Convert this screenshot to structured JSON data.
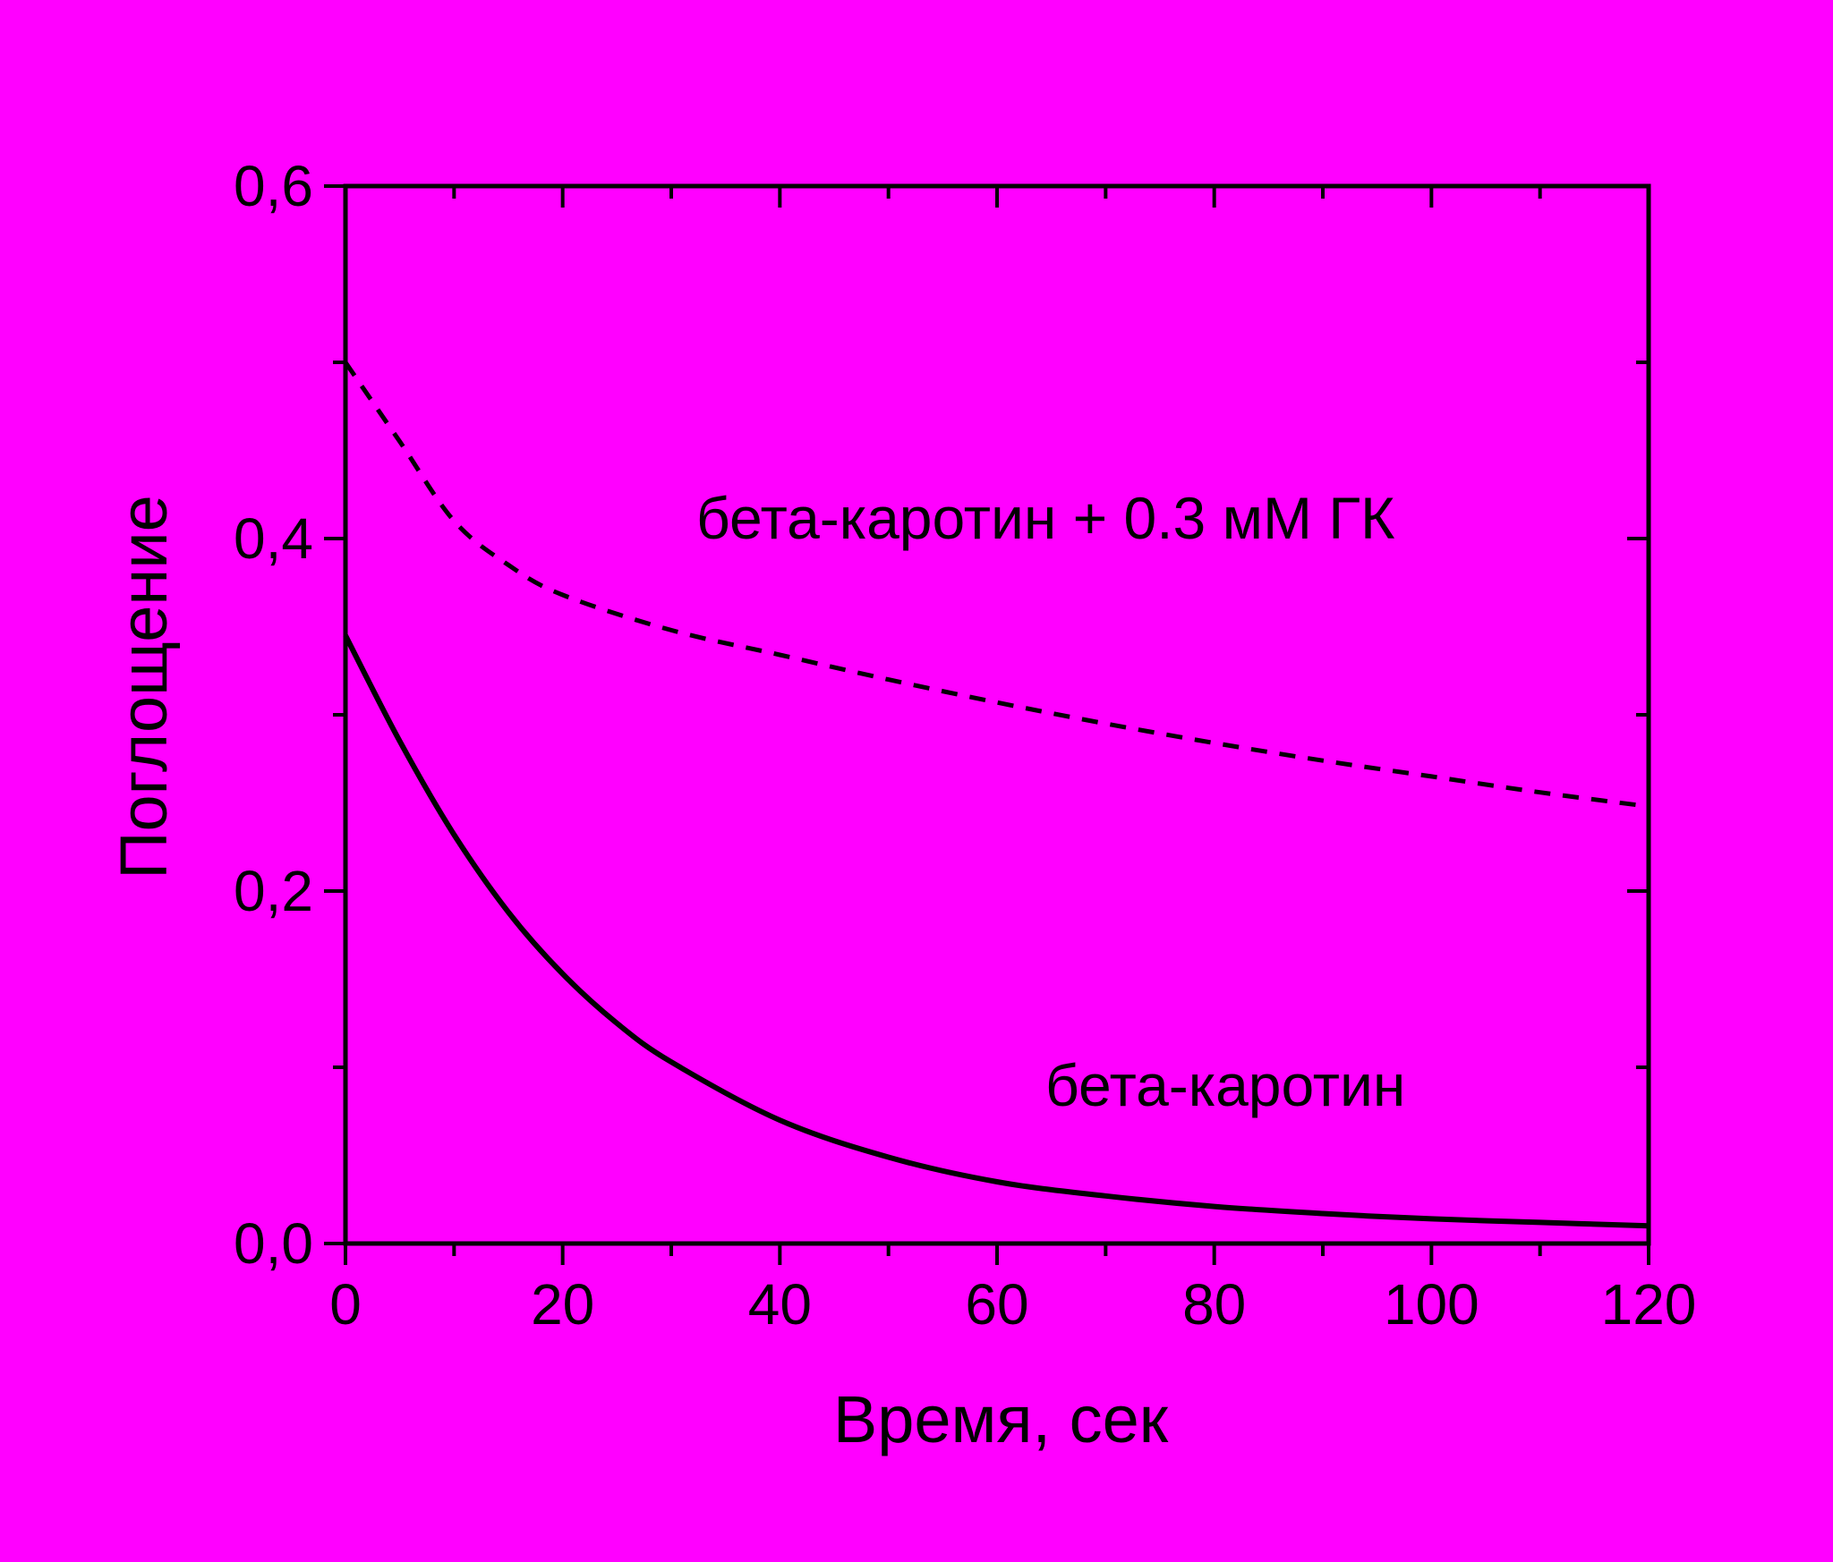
{
  "colors": {
    "background": "#ff00ff",
    "ink": "#000000"
  },
  "chart_data": {
    "type": "line",
    "xlabel": "Время, сек",
    "ylabel": "Поглощение",
    "xlim": [
      0,
      120
    ],
    "ylim": [
      0,
      0.6
    ],
    "x_ticks": [
      "0",
      "20",
      "40",
      "60",
      "80",
      "100",
      "120"
    ],
    "y_ticks": [
      "0,0",
      "0,2",
      "0,4",
      "0,6"
    ],
    "grid": false,
    "series": [
      {
        "name": "бета-каротин + 0.3 мМ ГК",
        "style": "dashed",
        "x": [
          0,
          5,
          10,
          15,
          20,
          30,
          40,
          50,
          60,
          70,
          80,
          90,
          100,
          110,
          120
        ],
        "y": [
          0.5,
          0.455,
          0.41,
          0.385,
          0.368,
          0.348,
          0.334,
          0.32,
          0.307,
          0.295,
          0.284,
          0.274,
          0.265,
          0.256,
          0.248
        ]
      },
      {
        "name": "бета-каротин",
        "style": "solid",
        "x": [
          0,
          5,
          10,
          15,
          20,
          25,
          30,
          40,
          50,
          60,
          70,
          80,
          90,
          100,
          110,
          120
        ],
        "y": [
          0.345,
          0.285,
          0.232,
          0.188,
          0.153,
          0.125,
          0.103,
          0.07,
          0.049,
          0.035,
          0.027,
          0.021,
          0.017,
          0.014,
          0.012,
          0.01
        ]
      }
    ]
  }
}
